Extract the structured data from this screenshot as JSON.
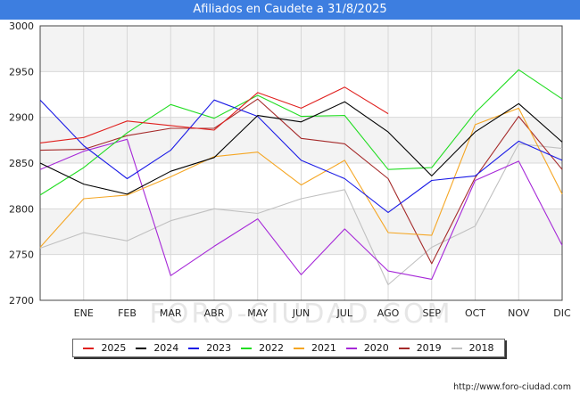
{
  "chart_data": {
    "type": "line",
    "title": "Afiliados en Caudete a 31/8/2025",
    "categories": [
      "",
      "ENE",
      "FEB",
      "MAR",
      "ABR",
      "MAY",
      "JUN",
      "JUL",
      "AGO",
      "SEP",
      "OCT",
      "NOV",
      "DIC"
    ],
    "ylim": [
      2700,
      3000
    ],
    "yticks": [
      2700,
      2750,
      2800,
      2850,
      2900,
      2950,
      3000
    ],
    "xlabel": "",
    "ylabel": "",
    "grid": true,
    "legend_position": "bottom",
    "series": [
      {
        "name": "2025",
        "color": "#e0201e",
        "values": [
          2872,
          2878,
          2896,
          2891,
          2886,
          2927,
          2910,
          2933,
          2904,
          null,
          null,
          null,
          null
        ]
      },
      {
        "name": "2024",
        "color": "#000000",
        "values": [
          2850,
          2827,
          2816,
          2841,
          2856,
          2902,
          2895,
          2917,
          2884,
          2836,
          2884,
          2915,
          2873
        ]
      },
      {
        "name": "2023",
        "color": "#1a1ae6",
        "values": [
          2919,
          2869,
          2833,
          2864,
          2919,
          2901,
          2853,
          2833,
          2796,
          2831,
          2836,
          2874,
          2853
        ]
      },
      {
        "name": "2022",
        "color": "#22dd22",
        "values": [
          2815,
          2845,
          2883,
          2914,
          2899,
          2924,
          2901,
          2902,
          2843,
          2845,
          2905,
          2952,
          2920
        ]
      },
      {
        "name": "2021",
        "color": "#f5a623",
        "values": [
          2758,
          2811,
          2815,
          2835,
          2857,
          2862,
          2826,
          2853,
          2774,
          2771,
          2892,
          2910,
          2816
        ]
      },
      {
        "name": "2020",
        "color": "#a628d8",
        "values": [
          2843,
          2863,
          2876,
          2727,
          2759,
          2789,
          2728,
          2778,
          2732,
          2723,
          2831,
          2852,
          2760
        ]
      },
      {
        "name": "2019",
        "color": "#a52a2a",
        "values": [
          2864,
          2865,
          2880,
          2888,
          2888,
          2920,
          2877,
          2871,
          2833,
          2740,
          2834,
          2901,
          2843
        ]
      },
      {
        "name": "2018",
        "color": "#c0c0c0",
        "values": [
          2757,
          2774,
          2765,
          2787,
          2800,
          2795,
          2811,
          2821,
          2717,
          2758,
          2781,
          2871,
          2866
        ]
      }
    ]
  },
  "watermark": "FORO-CIUDAD.COM",
  "source": "http://www.foro-ciudad.com"
}
